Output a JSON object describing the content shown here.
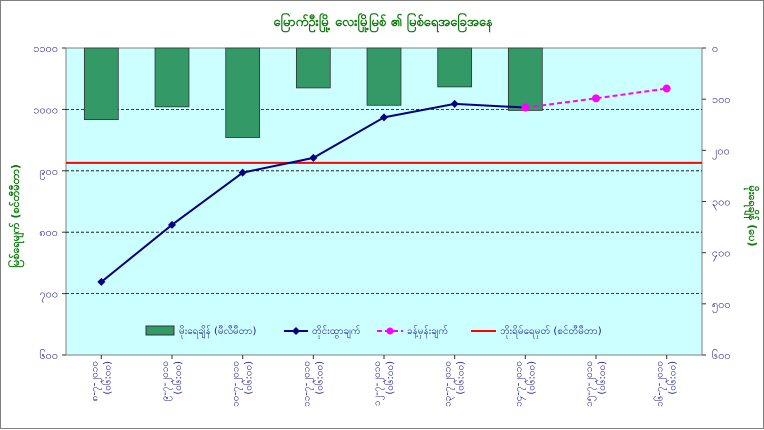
{
  "chart_data": {
    "type": "bar+line",
    "title": "မြောက်ဦးမြို့ လေးမြို့မြစ် ၏ မြစ်ရေအခြေအနေ",
    "ylabel_left": "မြစ်ရေမျက် (စင်တီမီတာ)",
    "ylabel_right": "မိုးရေချိန် (ပေ)",
    "left_axis": {
      "min": 600,
      "max": 1100,
      "step": 100,
      "tick_labels": [
        "၆၀၀",
        "၇၀၀",
        "၈၀၀",
        "၉၀၀",
        "၁၀၀၀",
        "၁၁၀၀"
      ]
    },
    "right_axis": {
      "min": 0,
      "max": 600,
      "step": 100,
      "inverted": true,
      "tick_labels": [
        "၀",
        "၁၀၀",
        "၂၀၀",
        "၃၀၀",
        "၄၀၀",
        "၅၀၀",
        "၆၀၀"
      ]
    },
    "categories": [
      [
        "၈-၇-၂၀၁၀",
        "(၀၆:၀၀)"
      ],
      [
        "၉-၇-၂၀၁၀",
        "(၀၆:၀၀)"
      ],
      [
        "၁၀-၇-၂၀၁၀",
        "(၀၆:၀၀)"
      ],
      [
        "၁၁-၇-၂၀၁၀",
        "(၀၆:၀၀)"
      ],
      [
        "၁၂-၇-၂၀၁၀",
        "(၀၆:၀၀)"
      ],
      [
        "၁၃-၇-၂၀၁၀",
        "(၀၆:၀၀)"
      ],
      [
        "၁၄-၇-၂၀၁၀",
        "(၀၆:၀၀)"
      ],
      [
        "၁၅-၇-၂၀၁၀",
        "(၀၆:၀၀)"
      ],
      [
        "၁၆-၇-၂၀၁၀",
        "(၀၆:၀၀)"
      ]
    ],
    "series": [
      {
        "name": "မိုးရေချိန် (မီလီမီတာ)",
        "type": "bar",
        "axis": "right",
        "color": "#339966",
        "values": [
          140,
          115,
          175,
          78,
          112,
          76,
          122,
          null,
          null
        ]
      },
      {
        "name": "တိုင်းထွာချက်",
        "type": "line",
        "axis": "left",
        "color": "#000080",
        "marker": "diamond",
        "values": [
          719,
          812,
          897,
          921,
          987,
          1009,
          1003,
          null,
          null
        ]
      },
      {
        "name": "ခန့်မှန်းချက်",
        "type": "line",
        "dashed": true,
        "axis": "left",
        "color": "#ff00ff",
        "marker": "circle",
        "values": [
          null,
          null,
          null,
          null,
          null,
          null,
          1003,
          1018,
          1034
        ]
      },
      {
        "name": "ဘိုးရိမ်ရေမှတ် (စင်တီမီတာ)",
        "type": "hline",
        "axis": "left",
        "color": "#ff0000",
        "value": 913
      }
    ],
    "grid": "horizontal-dashed",
    "legend_position": "bottom-inside",
    "plot_background": "#ccffff"
  }
}
